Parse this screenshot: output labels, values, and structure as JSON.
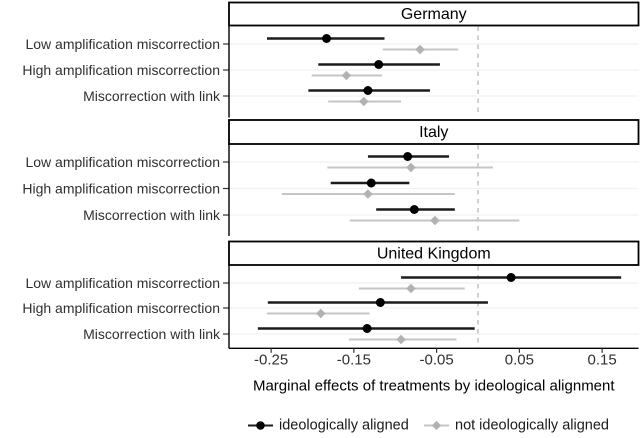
{
  "chart_data": {
    "type": "scatter",
    "subtype": "faceted-forest-plot-with-confidence-intervals",
    "title": "",
    "xlabel": "Marginal effects of treatments by ideological alignment",
    "ylabel": "",
    "x_ticks": [
      -0.25,
      -0.15,
      -0.05,
      0.05,
      0.15
    ],
    "x_tick_labels": [
      "-0.25",
      "-0.15",
      "-0.05",
      "0.05",
      "0.15"
    ],
    "xlim": [
      -0.301,
      0.194
    ],
    "reference_line_x": 0,
    "grid": "horizontal-category-lines-only",
    "legend_position": "bottom",
    "facets": [
      "Germany",
      "Italy",
      "United Kingdom"
    ],
    "categories": [
      "Low amplification miscorrection",
      "High amplification miscorrection",
      "Miscorrection with link"
    ],
    "series": [
      {
        "name": "ideologically aligned",
        "marker": "circle",
        "marker_color": "#000000",
        "line_color": "#1c1c1c"
      },
      {
        "name": "not ideologically aligned",
        "marker": "diamond",
        "marker_color": "#b2b2b2",
        "line_color": "#c5c5c5"
      }
    ],
    "panels": [
      {
        "facet": "Germany",
        "rows": [
          {
            "category": "Low amplification miscorrection",
            "aligned": {
              "est": -0.183,
              "lo": -0.255,
              "hi": -0.113
            },
            "not_aligned": {
              "est": -0.07,
              "lo": -0.115,
              "hi": -0.024
            }
          },
          {
            "category": "High amplification miscorrection",
            "aligned": {
              "est": -0.12,
              "lo": -0.193,
              "hi": -0.046
            },
            "not_aligned": {
              "est": -0.159,
              "lo": -0.201,
              "hi": -0.116
            }
          },
          {
            "category": "Miscorrection with link",
            "aligned": {
              "est": -0.133,
              "lo": -0.205,
              "hi": -0.058
            },
            "not_aligned": {
              "est": -0.138,
              "lo": -0.181,
              "hi": -0.093
            }
          }
        ]
      },
      {
        "facet": "Italy",
        "rows": [
          {
            "category": "Low amplification miscorrection",
            "aligned": {
              "est": -0.085,
              "lo": -0.133,
              "hi": -0.035
            },
            "not_aligned": {
              "est": -0.081,
              "lo": -0.182,
              "hi": 0.018
            }
          },
          {
            "category": "High amplification miscorrection",
            "aligned": {
              "est": -0.129,
              "lo": -0.178,
              "hi": -0.083
            },
            "not_aligned": {
              "est": -0.133,
              "lo": -0.237,
              "hi": -0.028
            }
          },
          {
            "category": "Miscorrection with link",
            "aligned": {
              "est": -0.077,
              "lo": -0.123,
              "hi": -0.028
            },
            "not_aligned": {
              "est": -0.052,
              "lo": -0.155,
              "hi": 0.05
            }
          }
        ]
      },
      {
        "facet": "United Kingdom",
        "rows": [
          {
            "category": "Low amplification miscorrection",
            "aligned": {
              "est": 0.04,
              "lo": -0.093,
              "hi": 0.173
            },
            "not_aligned": {
              "est": -0.081,
              "lo": -0.144,
              "hi": -0.016
            }
          },
          {
            "category": "High amplification miscorrection",
            "aligned": {
              "est": -0.118,
              "lo": -0.254,
              "hi": 0.012
            },
            "not_aligned": {
              "est": -0.19,
              "lo": -0.255,
              "hi": -0.131
            }
          },
          {
            "category": "Miscorrection with link",
            "aligned": {
              "est": -0.134,
              "lo": -0.266,
              "hi": -0.004
            },
            "not_aligned": {
              "est": -0.093,
              "lo": -0.156,
              "hi": -0.026
            }
          }
        ]
      }
    ],
    "colors": {
      "axis_line": "#000000",
      "tick_text": "#303030",
      "label_text": "#303030",
      "title_text": "#000000",
      "strip_text": "#000000",
      "strip_border": "#000000",
      "strip_bg": "#ffffff",
      "panel_bg": "#ffffff",
      "gridline": "#f1f1f1",
      "reference_line": "#bcbcbc"
    }
  }
}
